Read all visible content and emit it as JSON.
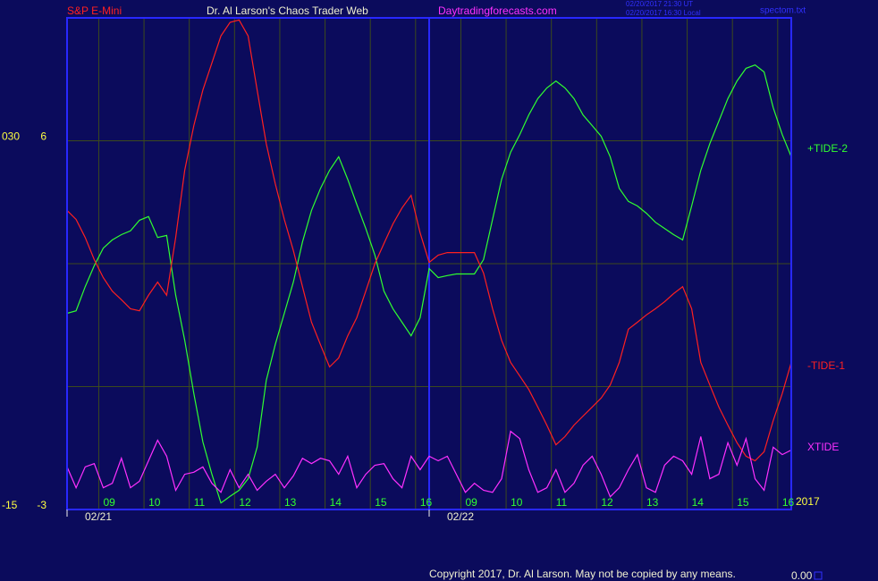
{
  "chart_data": {
    "type": "line",
    "header": {
      "left": "S&P E-Mini",
      "center": "Dr. Al Larson's Chaos Trader Web",
      "site": "Daytradingforecasts.com",
      "timestamps": [
        "02/20/2017 21:30 UT",
        "02/20/2017 16:30 Local"
      ],
      "file": "spectom.txt"
    },
    "year": "2017",
    "footer": {
      "copyright": "Copyright 2017, Dr. Al Larson. May not be copied by any means.",
      "value": "0.00"
    },
    "xlim": [
      0,
      16
    ],
    "xticks": [
      {
        "value": 0.7,
        "label": "09"
      },
      {
        "value": 1.7,
        "label": "10"
      },
      {
        "value": 2.7,
        "label": "11"
      },
      {
        "value": 3.7,
        "label": "12"
      },
      {
        "value": 4.7,
        "label": "13"
      },
      {
        "value": 5.7,
        "label": "14"
      },
      {
        "value": 6.7,
        "label": "15"
      },
      {
        "value": 7.7,
        "label": "16"
      },
      {
        "value": 8.7,
        "label": "09"
      },
      {
        "value": 9.7,
        "label": "10"
      },
      {
        "value": 10.7,
        "label": "11"
      },
      {
        "value": 11.7,
        "label": "12"
      },
      {
        "value": 12.7,
        "label": "13"
      },
      {
        "value": 13.7,
        "label": "14"
      },
      {
        "value": 14.7,
        "label": "15"
      },
      {
        "value": 15.7,
        "label": "16"
      }
    ],
    "dates": [
      {
        "value": 0,
        "label": "02/21"
      },
      {
        "value": 8,
        "label": "02/22"
      }
    ],
    "ylim": [
      -3,
      9
    ],
    "yticks": [
      -3,
      6
    ],
    "ygrid": [
      0,
      3,
      6
    ],
    "y2lim": [
      -15,
      45
    ],
    "y2ticks": [
      -15,
      {
        "value": 30,
        "label": "030"
      }
    ],
    "grid": true,
    "x": [
      0,
      0.2,
      0.4,
      0.6,
      0.8,
      1,
      1.2,
      1.4,
      1.6,
      1.8,
      2,
      2.2,
      2.4,
      2.6,
      2.8,
      3,
      3.2,
      3.4,
      3.6,
      3.8,
      4,
      4.2,
      4.4,
      4.6,
      4.8,
      5,
      5.2,
      5.4,
      5.6,
      5.8,
      6,
      6.2,
      6.4,
      6.6,
      6.8,
      7,
      7.2,
      7.4,
      7.6,
      7.8,
      8,
      8.2,
      8.4,
      8.6,
      8.8,
      9,
      9.2,
      9.4,
      9.6,
      9.8,
      10,
      10.2,
      10.4,
      10.6,
      10.8,
      11,
      11.2,
      11.4,
      11.6,
      11.8,
      12,
      12.2,
      12.4,
      12.6,
      12.8,
      13,
      13.2,
      13.4,
      13.6,
      13.8,
      14,
      14.2,
      14.4,
      14.6,
      14.8,
      15,
      15.2,
      15.4,
      15.6,
      15.8,
      16
    ],
    "series": [
      {
        "name": "+TIDE-2",
        "color": "#30ff30",
        "values": [
          1.79,
          1.85,
          2.44,
          2.95,
          3.38,
          3.58,
          3.71,
          3.8,
          4.06,
          4.15,
          3.64,
          3.69,
          2.23,
          1.13,
          -0.17,
          -1.35,
          -2.14,
          -2.84,
          -2.68,
          -2.53,
          -2.25,
          -1.48,
          0.15,
          1.03,
          1.79,
          2.55,
          3.53,
          4.3,
          4.84,
          5.28,
          5.61,
          5.06,
          4.45,
          3.86,
          3.21,
          2.33,
          1.9,
          1.57,
          1.24,
          1.68,
          2.88,
          2.66,
          2.71,
          2.75,
          2.75,
          2.75,
          3.1,
          4.08,
          5.06,
          5.72,
          6.15,
          6.63,
          7.03,
          7.29,
          7.46,
          7.29,
          7.03,
          6.63,
          6.37,
          6.11,
          5.61,
          4.84,
          4.52,
          4.41,
          4.23,
          4.01,
          3.86,
          3.71,
          3.58,
          4.41,
          5.28,
          5.93,
          6.48,
          7.03,
          7.46,
          7.77,
          7.85,
          7.68,
          6.81,
          6.15,
          5.61
        ]
      },
      {
        "name": "-TIDE-1",
        "color": "#ff2020",
        "values": [
          4.3,
          4.08,
          3.64,
          3.1,
          2.66,
          2.33,
          2.12,
          1.9,
          1.85,
          2.23,
          2.55,
          2.23,
          3.64,
          5.28,
          6.37,
          7.24,
          7.9,
          8.56,
          8.89,
          8.95,
          8.56,
          7.24,
          5.93,
          4.95,
          4.08,
          3.32,
          2.44,
          1.57,
          1.02,
          0.48,
          0.7,
          1.24,
          1.68,
          2.33,
          3.0,
          3.49,
          3.97,
          4.36,
          4.67,
          3.75,
          3.03,
          3.21,
          3.27,
          3.27,
          3.27,
          3.27,
          2.77,
          1.9,
          1.13,
          0.59,
          0.26,
          -0.07,
          -0.5,
          -0.94,
          -1.42,
          -1.22,
          -0.94,
          -0.72,
          -0.5,
          -0.28,
          0.04,
          0.59,
          1.4,
          1.57,
          1.75,
          1.9,
          2.07,
          2.27,
          2.44,
          1.9,
          0.59,
          0.04,
          -0.5,
          -0.94,
          -1.37,
          -1.7,
          -1.81,
          -1.59,
          -0.83,
          -0.17,
          0.59
        ]
      },
      {
        "name": "XTIDE",
        "color": "#ff30ff",
        "values": [
          -1.96,
          -2.47,
          -1.96,
          -1.88,
          -2.47,
          -2.36,
          -1.75,
          -2.47,
          -2.31,
          -1.81,
          -1.31,
          -1.7,
          -2.53,
          -2.14,
          -2.09,
          -1.96,
          -2.36,
          -2.58,
          -2.03,
          -2.47,
          -2.14,
          -2.53,
          -2.31,
          -2.14,
          -2.47,
          -2.18,
          -1.75,
          -1.88,
          -1.75,
          -1.81,
          -2.14,
          -1.7,
          -2.47,
          -2.14,
          -1.92,
          -1.88,
          -2.25,
          -2.47,
          -1.7,
          -2.03,
          -1.7,
          -1.81,
          -1.7,
          -2.14,
          -2.58,
          -2.36,
          -2.53,
          -2.58,
          -2.25,
          -1.09,
          -1.27,
          -2.03,
          -2.58,
          -2.47,
          -2.03,
          -2.58,
          -2.36,
          -1.92,
          -1.7,
          -2.14,
          -2.69,
          -2.47,
          -2.03,
          -1.66,
          -2.47,
          -2.58,
          -1.92,
          -1.7,
          -1.81,
          -2.14,
          -1.22,
          -2.25,
          -2.14,
          -1.37,
          -1.92,
          -1.27,
          -2.25,
          -2.53,
          -1.48,
          -1.66,
          -1.55
        ]
      }
    ]
  }
}
